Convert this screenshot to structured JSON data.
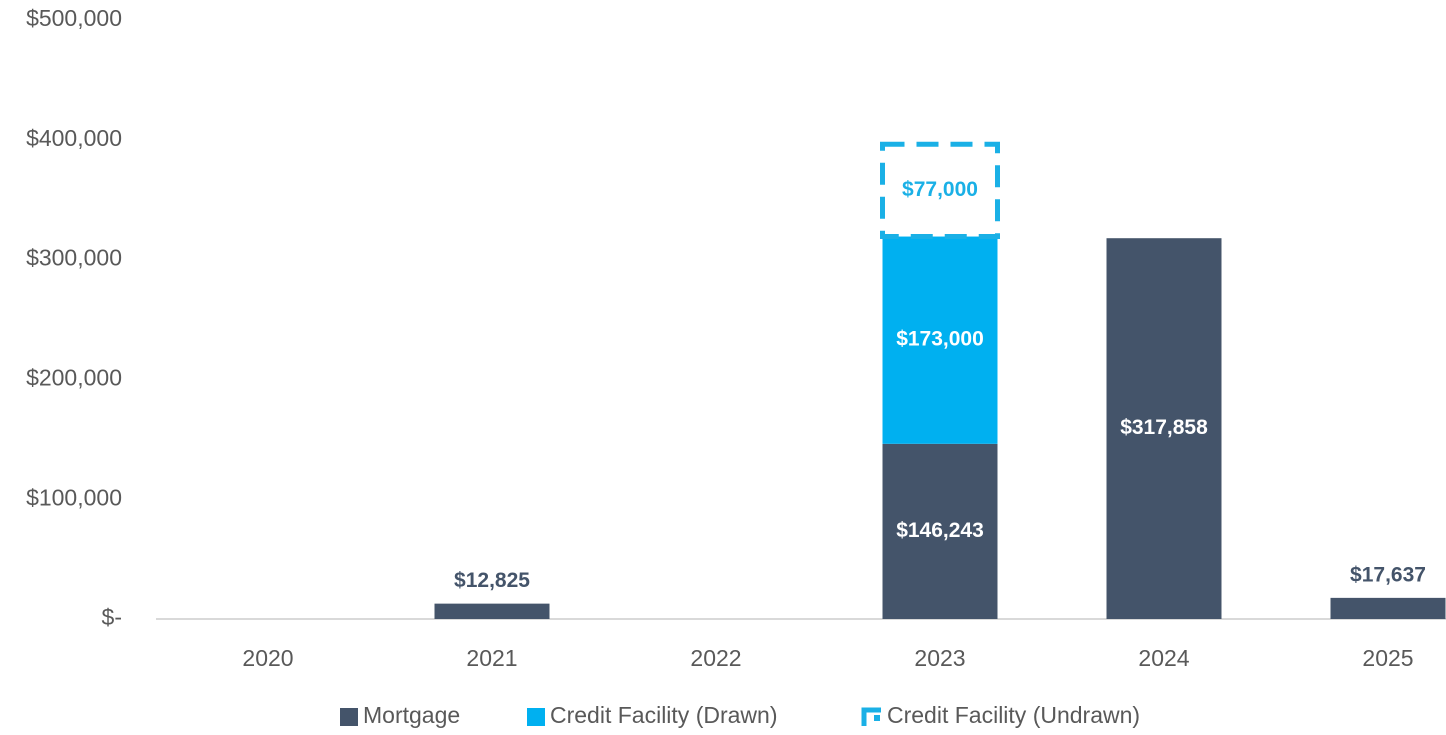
{
  "chart_data": {
    "type": "stacked_bar",
    "categories": [
      "2020",
      "2021",
      "2022",
      "2023",
      "2024",
      "2025"
    ],
    "series": [
      {
        "name": "Mortgage",
        "color": "#44546a",
        "style": "solid",
        "values": [
          null,
          12825,
          null,
          146243,
          317858,
          17637
        ],
        "value_labels": [
          null,
          "$12,825",
          null,
          "$146,243",
          "$317,858",
          "$17,637"
        ]
      },
      {
        "name": "Credit Facility (Drawn)",
        "color": "#00b0f0",
        "style": "solid",
        "values": [
          null,
          null,
          null,
          173000,
          null,
          null
        ],
        "value_labels": [
          null,
          null,
          null,
          "$173,000",
          null,
          null
        ]
      },
      {
        "name": "Credit Facility (Undrawn)",
        "color": "#1ab0e6",
        "style": "dashed",
        "values": [
          null,
          null,
          null,
          77000,
          null,
          null
        ],
        "value_labels": [
          null,
          null,
          null,
          "$77,000",
          null,
          null
        ]
      }
    ],
    "ylim": [
      0,
      500000
    ],
    "yticks": [
      {
        "value": 0,
        "label": "$-"
      },
      {
        "value": 100000,
        "label": "$100,000"
      },
      {
        "value": 200000,
        "label": "$200,000"
      },
      {
        "value": 300000,
        "label": "$300,000"
      },
      {
        "value": 400000,
        "label": "$400,000"
      },
      {
        "value": 500000,
        "label": "$500,000"
      }
    ],
    "legend": "bottom"
  }
}
